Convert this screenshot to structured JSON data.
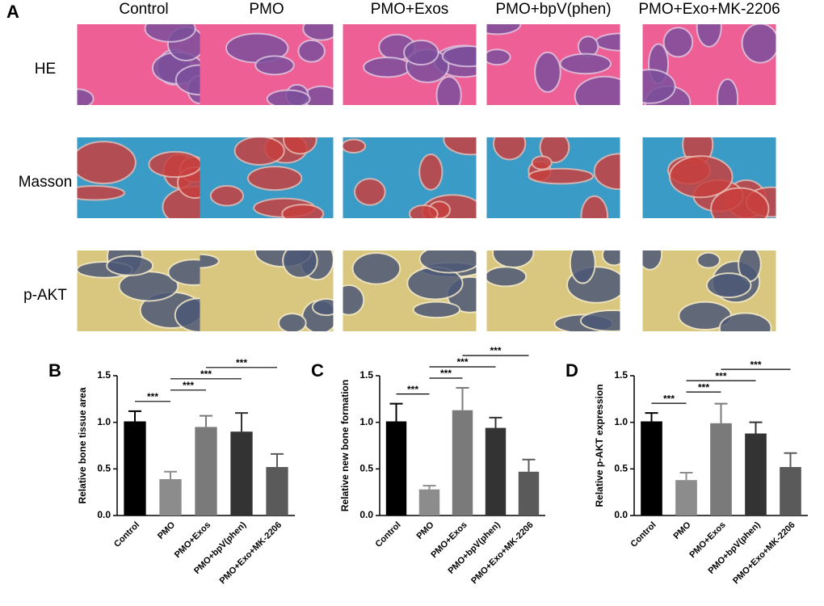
{
  "panel_a": {
    "label": "A",
    "columns": [
      "Control",
      "PMO",
      "PMO+Exos",
      "PMO+bpV(phen)",
      "PMO+Exo+MK-2206"
    ],
    "rows": [
      "HE",
      "Masson",
      "p-AKT"
    ]
  },
  "chart_data": [
    {
      "type": "bar",
      "label": "B",
      "y_label": "Relative bone tissue area",
      "categories": [
        "Control",
        "PMO",
        "PMO+Exos",
        "PMO+bpV(phen)",
        "PMO+Exo+MK-2206"
      ],
      "values": [
        1.01,
        0.39,
        0.95,
        0.9,
        0.52
      ],
      "errors": [
        0.11,
        0.08,
        0.12,
        0.2,
        0.14
      ],
      "colors": [
        "#000000",
        "#8c8c8c",
        "#7a7a7a",
        "#333333",
        "#5a5a5a"
      ],
      "ylim": [
        0,
        1.5
      ],
      "yticks": [
        {
          "value": 0,
          "label": "0.0"
        },
        {
          "value": 0.5,
          "label": "0.5"
        },
        {
          "value": 1,
          "label": "1.0"
        },
        {
          "value": 1.5,
          "label": "1.5"
        }
      ],
      "significance": [
        {
          "text": "***",
          "pair": [
            "Control",
            "PMO"
          ]
        },
        {
          "text": "***",
          "pair": [
            "PMO",
            "PMO+Exos"
          ]
        },
        {
          "text": "***",
          "pair": [
            "PMO",
            "PMO+bpV(phen)"
          ]
        },
        {
          "text": "***",
          "pair": [
            "PMO+Exos",
            "PMO+Exo+MK-2206"
          ]
        }
      ]
    },
    {
      "type": "bar",
      "label": "C",
      "y_label": "Relative new bone formation",
      "categories": [
        "Control",
        "PMO",
        "PMO+Exos",
        "PMO+bpV(phen)",
        "PMO+Exo+MK-2206"
      ],
      "values": [
        1.01,
        0.28,
        1.13,
        0.94,
        0.47
      ],
      "errors": [
        0.19,
        0.04,
        0.24,
        0.11,
        0.13
      ],
      "colors": [
        "#000000",
        "#8c8c8c",
        "#7a7a7a",
        "#333333",
        "#5a5a5a"
      ],
      "ylim": [
        0,
        1.5
      ],
      "yticks": [
        {
          "value": 0,
          "label": "0.0"
        },
        {
          "value": 0.5,
          "label": "0.5"
        },
        {
          "value": 1,
          "label": "1.0"
        },
        {
          "value": 1.5,
          "label": "1.5"
        }
      ],
      "significance": [
        {
          "text": "***",
          "pair": [
            "Control",
            "PMO"
          ]
        },
        {
          "text": "***",
          "pair": [
            "PMO",
            "PMO+Exos"
          ]
        },
        {
          "text": "***",
          "pair": [
            "PMO",
            "PMO+bpV(phen)"
          ]
        },
        {
          "text": "***",
          "pair": [
            "PMO+Exos",
            "PMO+Exo+MK-2206"
          ]
        }
      ]
    },
    {
      "type": "bar",
      "label": "D",
      "y_label": "Relative p-AKT expression",
      "categories": [
        "Control",
        "PMO",
        "PMO+Exos",
        "PMO+bpV(phen)",
        "PMO+Exo+MK-2206"
      ],
      "values": [
        1.01,
        0.38,
        0.99,
        0.88,
        0.52
      ],
      "errors": [
        0.09,
        0.08,
        0.21,
        0.12,
        0.15
      ],
      "colors": [
        "#000000",
        "#8c8c8c",
        "#7a7a7a",
        "#333333",
        "#5a5a5a"
      ],
      "ylim": [
        0,
        1.5
      ],
      "yticks": [
        {
          "value": 0,
          "label": "0.0"
        },
        {
          "value": 0.5,
          "label": "0.5"
        },
        {
          "value": 1,
          "label": "1.0"
        },
        {
          "value": 1.5,
          "label": "1.5"
        }
      ],
      "significance": [
        {
          "text": "***",
          "pair": [
            "Control",
            "PMO"
          ]
        },
        {
          "text": "***",
          "pair": [
            "PMO",
            "PMO+Exos"
          ]
        },
        {
          "text": "***",
          "pair": [
            "PMO",
            "PMO+bpV(phen)"
          ]
        },
        {
          "text": "***",
          "pair": [
            "PMO+Exos",
            "PMO+Exo+MK-2206"
          ]
        }
      ]
    }
  ]
}
